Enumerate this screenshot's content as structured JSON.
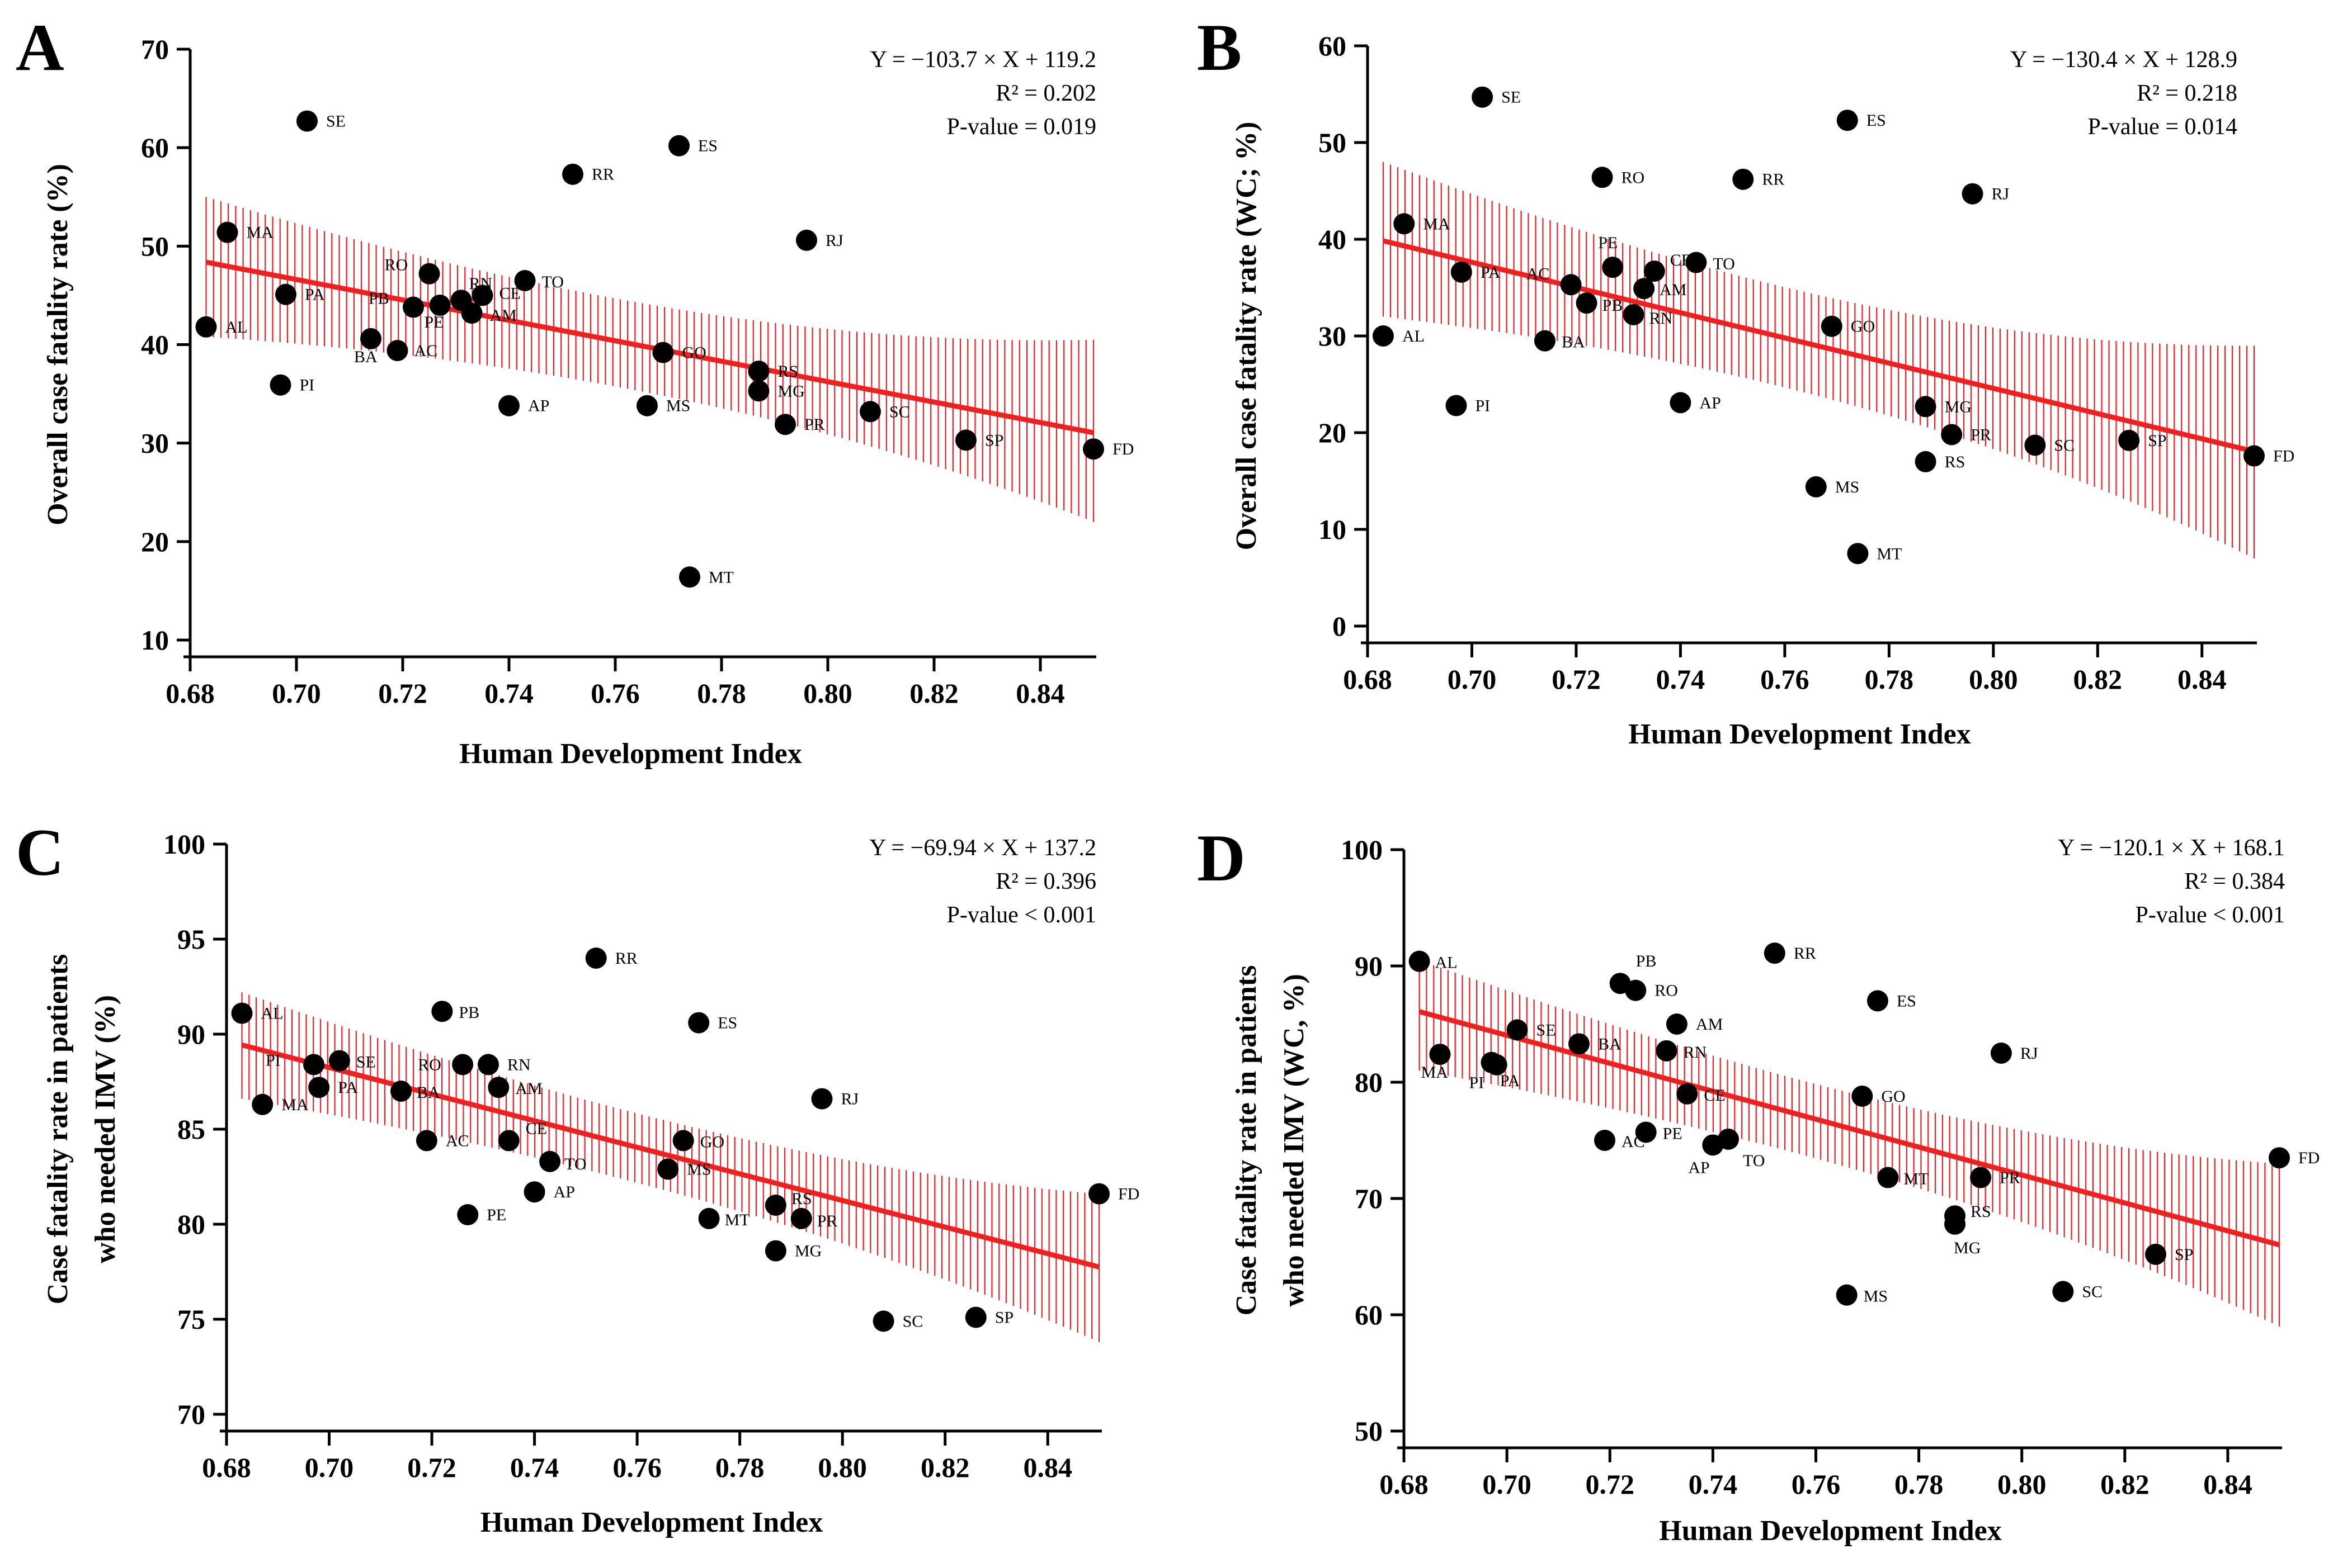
{
  "figure": {
    "colors": {
      "point": "#000000",
      "fit": "#f02020",
      "band": "#ee1f24",
      "axis": "#000000"
    }
  },
  "chart_data": [
    {
      "type": "scatter",
      "panel": "A",
      "xlabel": "Human Development Index",
      "ylabel": [
        "Overall case fatality rate (%)"
      ],
      "xlim": [
        0.68,
        0.85
      ],
      "ylim": [
        10,
        70
      ],
      "xticks": [
        "0.68",
        "0.70",
        "0.72",
        "0.74",
        "0.76",
        "0.78",
        "0.80",
        "0.82",
        "0.84"
      ],
      "yticks": [
        10,
        20,
        30,
        40,
        50,
        60,
        70
      ],
      "fit": {
        "slope": -103.7,
        "intercept": 119.2,
        "ci_left": [
          40.8,
          55.0
        ],
        "ci_right": [
          22.0,
          40.5
        ]
      },
      "stats": {
        "equation": "Y = −103.7 × X + 119.2",
        "r2": "R² = 0.202",
        "pvalue": "P-value = 0.019"
      },
      "points": [
        {
          "label": "AL",
          "x": 0.683,
          "y": 41.8
        },
        {
          "label": "MA",
          "x": 0.687,
          "y": 51.4
        },
        {
          "label": "PI",
          "x": 0.697,
          "y": 35.9
        },
        {
          "label": "PA",
          "x": 0.698,
          "y": 45.1
        },
        {
          "label": "SE",
          "x": 0.702,
          "y": 62.7
        },
        {
          "label": "BA",
          "x": 0.714,
          "y": 40.6
        },
        {
          "label": "AC",
          "x": 0.719,
          "y": 39.4
        },
        {
          "label": "PB",
          "x": 0.722,
          "y": 43.8
        },
        {
          "label": "RO",
          "x": 0.725,
          "y": 47.2
        },
        {
          "label": "PE",
          "x": 0.727,
          "y": 44.0
        },
        {
          "label": "RN",
          "x": 0.731,
          "y": 44.5
        },
        {
          "label": "AM",
          "x": 0.733,
          "y": 43.2
        },
        {
          "label": "CE",
          "x": 0.735,
          "y": 45.0
        },
        {
          "label": "AP",
          "x": 0.74,
          "y": 33.8
        },
        {
          "label": "TO",
          "x": 0.743,
          "y": 46.5
        },
        {
          "label": "RR",
          "x": 0.752,
          "y": 57.3
        },
        {
          "label": "MS",
          "x": 0.766,
          "y": 33.8
        },
        {
          "label": "GO",
          "x": 0.769,
          "y": 39.2
        },
        {
          "label": "ES",
          "x": 0.772,
          "y": 60.2
        },
        {
          "label": "MT",
          "x": 0.774,
          "y": 16.4
        },
        {
          "label": "RS",
          "x": 0.787,
          "y": 37.3
        },
        {
          "label": "MG",
          "x": 0.787,
          "y": 35.3
        },
        {
          "label": "PR",
          "x": 0.792,
          "y": 31.9
        },
        {
          "label": "RJ",
          "x": 0.796,
          "y": 50.6
        },
        {
          "label": "SC",
          "x": 0.808,
          "y": 33.2
        },
        {
          "label": "SP",
          "x": 0.826,
          "y": 30.3
        },
        {
          "label": "FD",
          "x": 0.85,
          "y": 29.4
        }
      ]
    },
    {
      "type": "scatter",
      "panel": "B",
      "xlabel": "Human Development Index",
      "ylabel": [
        "Overall case fatality rate (WC; %)"
      ],
      "xlim": [
        0.68,
        0.85
      ],
      "ylim": [
        0,
        60
      ],
      "xticks": [
        "0.68",
        "0.70",
        "0.72",
        "0.74",
        "0.76",
        "0.78",
        "0.80",
        "0.82",
        "0.84"
      ],
      "yticks": [
        0,
        10,
        20,
        30,
        40,
        50,
        60
      ],
      "fit": {
        "slope": -130.4,
        "intercept": 128.9,
        "ci_left": [
          32.0,
          48.0
        ],
        "ci_right": [
          7.0,
          29.0
        ]
      },
      "stats": {
        "equation": "Y = −130.4 × X + 128.9",
        "r2": "R² = 0.218",
        "pvalue": "P-value = 0.014"
      },
      "points": [
        {
          "label": "AL",
          "x": 0.683,
          "y": 30.0
        },
        {
          "label": "MA",
          "x": 0.687,
          "y": 41.6
        },
        {
          "label": "PI",
          "x": 0.697,
          "y": 22.8
        },
        {
          "label": "PA",
          "x": 0.698,
          "y": 36.6
        },
        {
          "label": "SE",
          "x": 0.702,
          "y": 54.7
        },
        {
          "label": "BA",
          "x": 0.714,
          "y": 29.5
        },
        {
          "label": "AC",
          "x": 0.719,
          "y": 35.3
        },
        {
          "label": "PB",
          "x": 0.722,
          "y": 33.4
        },
        {
          "label": "RO",
          "x": 0.725,
          "y": 46.4
        },
        {
          "label": "PE",
          "x": 0.727,
          "y": 37.1
        },
        {
          "label": "RN",
          "x": 0.731,
          "y": 32.2
        },
        {
          "label": "AM",
          "x": 0.733,
          "y": 34.9
        },
        {
          "label": "CE",
          "x": 0.735,
          "y": 36.7
        },
        {
          "label": "AP",
          "x": 0.74,
          "y": 23.1
        },
        {
          "label": "TO",
          "x": 0.743,
          "y": 37.6
        },
        {
          "label": "RR",
          "x": 0.752,
          "y": 46.2
        },
        {
          "label": "MS",
          "x": 0.766,
          "y": 14.4
        },
        {
          "label": "GO",
          "x": 0.769,
          "y": 31.0
        },
        {
          "label": "ES",
          "x": 0.772,
          "y": 52.3
        },
        {
          "label": "MT",
          "x": 0.774,
          "y": 7.5
        },
        {
          "label": "RS",
          "x": 0.787,
          "y": 17.0
        },
        {
          "label": "MG",
          "x": 0.787,
          "y": 22.7
        },
        {
          "label": "PR",
          "x": 0.792,
          "y": 19.8
        },
        {
          "label": "RJ",
          "x": 0.796,
          "y": 44.7
        },
        {
          "label": "SC",
          "x": 0.808,
          "y": 18.7
        },
        {
          "label": "SP",
          "x": 0.826,
          "y": 19.2
        },
        {
          "label": "FD",
          "x": 0.85,
          "y": 17.6
        }
      ]
    },
    {
      "type": "scatter",
      "panel": "C",
      "xlabel": "Human Development Index",
      "ylabel": [
        "Case fatality rate in patients",
        "who needed IMV (%)"
      ],
      "xlim": [
        0.68,
        0.85
      ],
      "ylim": [
        70,
        100
      ],
      "xticks": [
        "0.68",
        "0.70",
        "0.72",
        "0.74",
        "0.76",
        "0.78",
        "0.80",
        "0.82",
        "0.84"
      ],
      "yticks": [
        70,
        75,
        80,
        85,
        90,
        95,
        100
      ],
      "fit": {
        "slope": -69.94,
        "intercept": 137.2,
        "ci_left": [
          86.6,
          92.2
        ],
        "ci_right": [
          73.8,
          81.6
        ]
      },
      "stats": {
        "equation": "Y = −69.94 × X + 137.2",
        "r2": "R² = 0.396",
        "pvalue": "P-value < 0.001"
      },
      "points": [
        {
          "label": "AL",
          "x": 0.683,
          "y": 91.1
        },
        {
          "label": "MA",
          "x": 0.687,
          "y": 86.3
        },
        {
          "label": "PI",
          "x": 0.697,
          "y": 88.4
        },
        {
          "label": "PA",
          "x": 0.698,
          "y": 87.2
        },
        {
          "label": "SE",
          "x": 0.702,
          "y": 88.6
        },
        {
          "label": "BA",
          "x": 0.714,
          "y": 87.0
        },
        {
          "label": "AC",
          "x": 0.719,
          "y": 84.4
        },
        {
          "label": "PB",
          "x": 0.722,
          "y": 91.2
        },
        {
          "label": "RO",
          "x": 0.726,
          "y": 88.4
        },
        {
          "label": "PE",
          "x": 0.727,
          "y": 80.5
        },
        {
          "label": "RN",
          "x": 0.731,
          "y": 88.4
        },
        {
          "label": "AM",
          "x": 0.733,
          "y": 87.2
        },
        {
          "label": "CE",
          "x": 0.735,
          "y": 84.4
        },
        {
          "label": "AP",
          "x": 0.74,
          "y": 81.7
        },
        {
          "label": "TO",
          "x": 0.743,
          "y": 83.3
        },
        {
          "label": "RR",
          "x": 0.752,
          "y": 94.0
        },
        {
          "label": "MS",
          "x": 0.766,
          "y": 82.9
        },
        {
          "label": "GO",
          "x": 0.769,
          "y": 84.4
        },
        {
          "label": "ES",
          "x": 0.772,
          "y": 90.6
        },
        {
          "label": "MT",
          "x": 0.774,
          "y": 80.3
        },
        {
          "label": "RS",
          "x": 0.787,
          "y": 81.0
        },
        {
          "label": "MG",
          "x": 0.787,
          "y": 78.6
        },
        {
          "label": "PR",
          "x": 0.792,
          "y": 80.3
        },
        {
          "label": "RJ",
          "x": 0.796,
          "y": 86.6
        },
        {
          "label": "SC",
          "x": 0.808,
          "y": 74.9
        },
        {
          "label": "SP",
          "x": 0.826,
          "y": 75.1
        },
        {
          "label": "FD",
          "x": 0.85,
          "y": 81.6
        }
      ]
    },
    {
      "type": "scatter",
      "panel": "D",
      "xlabel": "Human Development Index",
      "ylabel": [
        "Case fatality rate in patients",
        "who needed IMV (WC, %)"
      ],
      "xlim": [
        0.68,
        0.85
      ],
      "ylim": [
        50,
        100
      ],
      "xticks": [
        "0.68",
        "0.70",
        "0.72",
        "0.74",
        "0.76",
        "0.78",
        "0.80",
        "0.82",
        "0.84"
      ],
      "yticks": [
        50,
        60,
        70,
        80,
        90,
        100
      ],
      "fit": {
        "slope": -120.1,
        "intercept": 168.1,
        "ci_left": [
          81.0,
          90.5
        ],
        "ci_right": [
          59.0,
          73.0
        ]
      },
      "stats": {
        "equation": "Y = −120.1 × X + 168.1",
        "r2": "R² = 0.384",
        "pvalue": "P-value < 0.001"
      },
      "points": [
        {
          "label": "AL",
          "x": 0.683,
          "y": 90.4
        },
        {
          "label": "MA",
          "x": 0.687,
          "y": 82.4
        },
        {
          "label": "PI",
          "x": 0.697,
          "y": 81.7
        },
        {
          "label": "PA",
          "x": 0.698,
          "y": 81.5
        },
        {
          "label": "SE",
          "x": 0.702,
          "y": 84.5
        },
        {
          "label": "BA",
          "x": 0.714,
          "y": 83.3
        },
        {
          "label": "AC",
          "x": 0.719,
          "y": 75.0
        },
        {
          "label": "PB",
          "x": 0.722,
          "y": 88.5
        },
        {
          "label": "RO",
          "x": 0.725,
          "y": 87.9
        },
        {
          "label": "PE",
          "x": 0.727,
          "y": 75.7
        },
        {
          "label": "RN",
          "x": 0.731,
          "y": 82.7
        },
        {
          "label": "AM",
          "x": 0.733,
          "y": 85.0
        },
        {
          "label": "CE",
          "x": 0.735,
          "y": 79.0
        },
        {
          "label": "AP",
          "x": 0.74,
          "y": 74.6
        },
        {
          "label": "TO",
          "x": 0.743,
          "y": 75.1
        },
        {
          "label": "RR",
          "x": 0.752,
          "y": 91.1
        },
        {
          "label": "MS",
          "x": 0.766,
          "y": 61.7
        },
        {
          "label": "GO",
          "x": 0.769,
          "y": 78.8
        },
        {
          "label": "ES",
          "x": 0.772,
          "y": 87.0
        },
        {
          "label": "MT",
          "x": 0.774,
          "y": 71.8
        },
        {
          "label": "RS",
          "x": 0.787,
          "y": 68.5
        },
        {
          "label": "MG",
          "x": 0.787,
          "y": 67.8
        },
        {
          "label": "PR",
          "x": 0.792,
          "y": 71.8
        },
        {
          "label": "RJ",
          "x": 0.796,
          "y": 82.5
        },
        {
          "label": "SC",
          "x": 0.808,
          "y": 62.0
        },
        {
          "label": "SP",
          "x": 0.826,
          "y": 65.2
        },
        {
          "label": "FD",
          "x": 0.85,
          "y": 73.5
        }
      ]
    }
  ]
}
